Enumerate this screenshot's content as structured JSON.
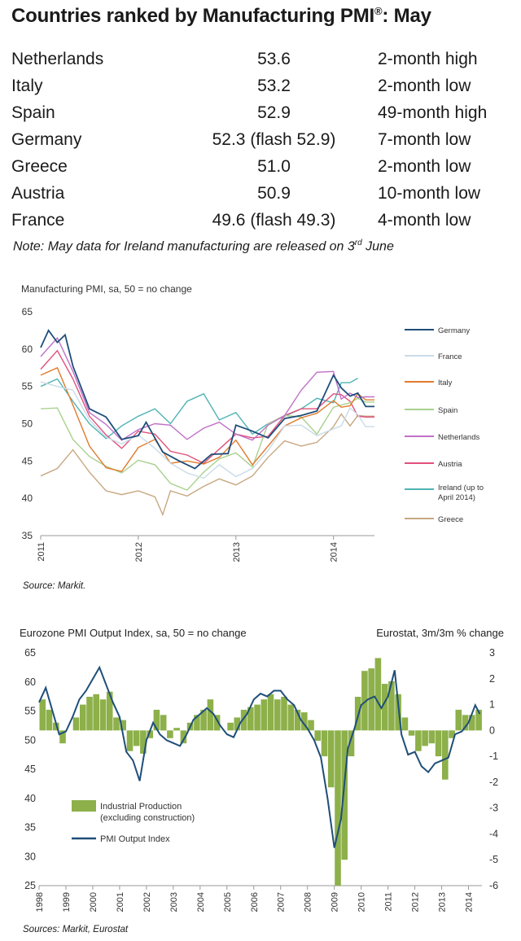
{
  "title": "Countries ranked by Manufacturing PMI",
  "title_mark": "®",
  "title_suffix": ": May",
  "rankings": [
    {
      "country": "Netherlands",
      "value": "53.6",
      "note": "2-month high"
    },
    {
      "country": "Italy",
      "value": "53.2",
      "note": "2-month low"
    },
    {
      "country": "Spain",
      "value": "52.9",
      "note": "49-month high"
    },
    {
      "country": "Germany",
      "value": "52.3 (flash 52.9)",
      "note": "7-month low"
    },
    {
      "country": "Greece",
      "value": "51.0",
      "note": "2-month low"
    },
    {
      "country": "Austria",
      "value": "50.9",
      "note": "10-month low"
    },
    {
      "country": "France",
      "value": "49.6 (flash 49.3)",
      "note": "4-month low"
    }
  ],
  "note_pre": "Note: May data for Ireland manufacturing are released on 3",
  "note_sup": "rd",
  "note_post": " June",
  "source1": "Source: Markit.",
  "source2": "Sources: Markit, Eurostat",
  "chart_data": [
    {
      "type": "line",
      "title": "Manufacturing PMI, sa, 50 = no change",
      "xlabel": "",
      "ylabel": "",
      "ylim": [
        35,
        65
      ],
      "yticks": [
        35,
        40,
        45,
        50,
        55,
        60,
        65
      ],
      "xlim": [
        2011.0,
        2014.42
      ],
      "xticks": [
        "2011",
        "2012",
        "2013",
        "2014"
      ],
      "legend_position": "right",
      "series": [
        {
          "name": "Germany",
          "color": "#1f4e79",
          "x": [
            2011.0,
            2011.08,
            2011.17,
            2011.25,
            2011.33,
            2011.5,
            2011.67,
            2011.83,
            2012.0,
            2012.08,
            2012.25,
            2012.42,
            2012.58,
            2012.75,
            2012.92,
            2013.0,
            2013.17,
            2013.33,
            2013.5,
            2013.67,
            2013.83,
            2014.0,
            2014.08,
            2014.17,
            2014.25,
            2014.33,
            2014.42
          ],
          "values": [
            60.2,
            62.5,
            60.9,
            61.9,
            57.7,
            52.0,
            50.9,
            47.9,
            48.4,
            50.2,
            46.2,
            45.0,
            44.0,
            45.9,
            46.0,
            49.8,
            49.0,
            48.1,
            50.7,
            51.1,
            51.7,
            56.5,
            54.8,
            53.7,
            54.1,
            52.3,
            52.3
          ]
        },
        {
          "name": "France",
          "color": "#c9dbe8",
          "x": [
            2011.0,
            2011.17,
            2011.33,
            2011.5,
            2011.67,
            2011.83,
            2012.0,
            2012.17,
            2012.33,
            2012.5,
            2012.67,
            2012.83,
            2013.0,
            2013.17,
            2013.33,
            2013.5,
            2013.67,
            2013.83,
            2014.0,
            2014.08,
            2014.17,
            2014.25,
            2014.33,
            2014.42
          ],
          "values": [
            55.6,
            55.0,
            54.5,
            50.5,
            48.2,
            47.3,
            48.5,
            46.7,
            44.7,
            43.4,
            42.7,
            44.5,
            42.9,
            44.0,
            46.4,
            49.7,
            49.8,
            48.4,
            49.3,
            49.7,
            52.1,
            51.2,
            49.6,
            49.6
          ]
        },
        {
          "name": "Italy",
          "color": "#e07b2d",
          "x": [
            2011.0,
            2011.17,
            2011.33,
            2011.5,
            2011.67,
            2011.83,
            2012.0,
            2012.17,
            2012.33,
            2012.5,
            2012.67,
            2012.83,
            2013.0,
            2013.17,
            2013.33,
            2013.5,
            2013.67,
            2013.83,
            2014.0,
            2014.08,
            2014.17,
            2014.25,
            2014.33,
            2014.42
          ],
          "values": [
            56.5,
            57.5,
            52.5,
            47.0,
            44.1,
            43.6,
            46.8,
            47.9,
            44.7,
            45.0,
            44.6,
            45.5,
            47.8,
            44.5,
            47.0,
            49.7,
            50.8,
            51.4,
            53.1,
            52.2,
            52.4,
            54.0,
            53.2,
            53.2
          ]
        },
        {
          "name": "Spain",
          "color": "#a9d18e",
          "x": [
            2011.0,
            2011.17,
            2011.33,
            2011.5,
            2011.67,
            2011.83,
            2012.0,
            2012.17,
            2012.33,
            2012.5,
            2012.67,
            2012.83,
            2013.0,
            2013.17,
            2013.33,
            2013.5,
            2013.67,
            2013.83,
            2014.0,
            2014.08,
            2014.17,
            2014.25,
            2014.33,
            2014.42
          ],
          "values": [
            52.0,
            52.1,
            47.9,
            45.6,
            44.3,
            43.4,
            45.1,
            44.5,
            42.0,
            41.1,
            43.5,
            45.3,
            46.1,
            44.2,
            50.0,
            51.1,
            50.9,
            48.6,
            52.2,
            52.5,
            52.8,
            53.4,
            52.9,
            52.9
          ]
        },
        {
          "name": "Netherlands",
          "color": "#c070c8",
          "x": [
            2011.0,
            2011.17,
            2011.33,
            2011.5,
            2011.67,
            2011.83,
            2012.0,
            2012.17,
            2012.33,
            2012.5,
            2012.67,
            2012.83,
            2013.0,
            2013.17,
            2013.33,
            2013.5,
            2013.67,
            2013.83,
            2014.0,
            2014.08,
            2014.17,
            2014.25,
            2014.33,
            2014.42
          ],
          "values": [
            59.0,
            61.5,
            57.0,
            51.5,
            49.9,
            47.8,
            49.2,
            50.0,
            49.8,
            47.9,
            49.4,
            50.2,
            48.6,
            47.8,
            49.8,
            51.1,
            54.5,
            56.9,
            57.0,
            53.3,
            54.1,
            53.5,
            53.6,
            53.6
          ]
        },
        {
          "name": "Austria",
          "color": "#e0507a",
          "x": [
            2011.0,
            2011.17,
            2011.33,
            2011.5,
            2011.67,
            2011.83,
            2012.0,
            2012.17,
            2012.33,
            2012.5,
            2012.67,
            2012.83,
            2013.0,
            2013.17,
            2013.33,
            2013.5,
            2013.67,
            2013.83,
            2014.0,
            2014.08,
            2014.17,
            2014.25,
            2014.33,
            2014.42
          ],
          "values": [
            57.3,
            59.8,
            56.0,
            51.0,
            48.5,
            46.7,
            49.0,
            48.6,
            46.3,
            45.8,
            44.7,
            46.6,
            48.6,
            48.1,
            48.3,
            51.1,
            52.0,
            52.0,
            54.0,
            53.9,
            53.0,
            51.0,
            50.9,
            50.9
          ]
        },
        {
          "name": "Ireland (up to April 2014)",
          "color": "#4fb3b3",
          "x": [
            2011.0,
            2011.17,
            2011.33,
            2011.5,
            2011.67,
            2011.83,
            2012.0,
            2012.17,
            2012.33,
            2012.5,
            2012.67,
            2012.83,
            2013.0,
            2013.17,
            2013.33,
            2013.5,
            2013.67,
            2013.83,
            2014.0,
            2014.08,
            2014.17,
            2014.25
          ],
          "values": [
            55.0,
            56.0,
            53.0,
            50.0,
            48.0,
            49.7,
            51.0,
            52.0,
            50.0,
            53.0,
            54.0,
            50.5,
            51.5,
            48.6,
            50.0,
            51.0,
            52.0,
            53.4,
            52.8,
            55.5,
            55.5,
            56.1
          ]
        },
        {
          "name": "Greece",
          "color": "#c7a882",
          "x": [
            2011.0,
            2011.17,
            2011.33,
            2011.5,
            2011.67,
            2011.83,
            2012.0,
            2012.17,
            2012.25,
            2012.33,
            2012.5,
            2012.67,
            2012.83,
            2013.0,
            2013.17,
            2013.33,
            2013.5,
            2013.67,
            2013.83,
            2014.0,
            2014.08,
            2014.17,
            2014.25,
            2014.33,
            2014.42
          ],
          "values": [
            43.0,
            44.0,
            46.5,
            43.5,
            41.0,
            40.5,
            41.0,
            40.2,
            37.8,
            41.0,
            40.3,
            41.6,
            42.6,
            41.8,
            43.0,
            45.5,
            47.7,
            47.0,
            47.5,
            49.6,
            51.3,
            49.7,
            51.1,
            51.0,
            51.0
          ]
        }
      ]
    },
    {
      "type": "bar",
      "title": "Eurozone PMI Output Index, sa, 50 = no change",
      "right_axis_title": "Eurostat, 3m/3m % change",
      "ylim": [
        25,
        65
      ],
      "yticks": [
        25,
        30,
        35,
        40,
        45,
        50,
        55,
        60,
        65
      ],
      "y2lim": [
        -6,
        3
      ],
      "y2ticks": [
        -6,
        -5,
        -4,
        -3,
        -2,
        -1,
        0,
        1,
        2,
        3
      ],
      "xlim": [
        1998.0,
        2014.5
      ],
      "xticks": [
        "1998",
        "1999",
        "2000",
        "2001",
        "2002",
        "2003",
        "2004",
        "2005",
        "2006",
        "2007",
        "2008",
        "2009",
        "2010",
        "2011",
        "2012",
        "2013",
        "2014"
      ],
      "legend_position": "bottom-left",
      "series": [
        {
          "name": "Industrial Production (excluding construction)",
          "axis": "right",
          "color": "#8db04a",
          "x": [
            1998.0,
            1998.25,
            1998.5,
            1998.75,
            1999.0,
            1999.25,
            1999.5,
            1999.75,
            2000.0,
            2000.25,
            2000.5,
            2000.75,
            2001.0,
            2001.25,
            2001.5,
            2001.75,
            2002.0,
            2002.25,
            2002.5,
            2002.75,
            2003.0,
            2003.25,
            2003.5,
            2003.75,
            2004.0,
            2004.25,
            2004.5,
            2004.75,
            2005.0,
            2005.25,
            2005.5,
            2005.75,
            2006.0,
            2006.25,
            2006.5,
            2006.75,
            2007.0,
            2007.25,
            2007.5,
            2007.75,
            2008.0,
            2008.25,
            2008.5,
            2008.75,
            2009.0,
            2009.25,
            2009.5,
            2009.75,
            2010.0,
            2010.25,
            2010.5,
            2010.75,
            2011.0,
            2011.25,
            2011.5,
            2011.75,
            2012.0,
            2012.25,
            2012.5,
            2012.75,
            2013.0,
            2013.25,
            2013.5,
            2013.75,
            2014.0,
            2014.25
          ],
          "values": [
            1.2,
            0.8,
            0.3,
            -0.5,
            0.0,
            0.5,
            1.0,
            1.3,
            1.4,
            1.2,
            1.5,
            0.5,
            0.4,
            -0.8,
            -0.6,
            -0.9,
            -0.3,
            0.8,
            0.6,
            -0.3,
            0.1,
            -0.5,
            0.3,
            0.6,
            0.8,
            1.2,
            0.6,
            0.0,
            0.3,
            0.5,
            0.8,
            0.9,
            1.0,
            1.2,
            1.4,
            1.2,
            1.3,
            1.0,
            0.8,
            0.7,
            0.4,
            -0.4,
            -1.0,
            -2.2,
            -6.0,
            -5.0,
            -1.0,
            1.3,
            2.3,
            2.4,
            2.8,
            1.8,
            1.9,
            1.4,
            0.5,
            -0.2,
            -0.8,
            -0.6,
            -0.5,
            -1.0,
            -1.9,
            -0.3,
            0.8,
            0.6,
            0.6,
            0.8
          ]
        },
        {
          "name": "PMI Output Index",
          "axis": "left",
          "color": "#1f4e79",
          "x": [
            1998.0,
            1998.25,
            1998.5,
            1998.75,
            1999.0,
            1999.25,
            1999.5,
            1999.75,
            2000.0,
            2000.25,
            2000.5,
            2000.75,
            2001.0,
            2001.25,
            2001.5,
            2001.75,
            2002.0,
            2002.25,
            2002.5,
            2002.75,
            2003.0,
            2003.25,
            2003.5,
            2003.75,
            2004.0,
            2004.25,
            2004.5,
            2004.75,
            2005.0,
            2005.25,
            2005.5,
            2005.75,
            2006.0,
            2006.25,
            2006.5,
            2006.75,
            2007.0,
            2007.25,
            2007.5,
            2007.75,
            2008.0,
            2008.25,
            2008.5,
            2008.75,
            2009.0,
            2009.25,
            2009.5,
            2009.75,
            2010.0,
            2010.25,
            2010.5,
            2010.75,
            2011.0,
            2011.25,
            2011.5,
            2011.75,
            2012.0,
            2012.25,
            2012.5,
            2012.75,
            2013.0,
            2013.25,
            2013.5,
            2013.75,
            2014.0,
            2014.25,
            2014.42
          ],
          "values": [
            56.5,
            59.0,
            55.0,
            51.0,
            51.5,
            54.0,
            57.0,
            58.5,
            60.5,
            62.5,
            59.5,
            56.5,
            54.0,
            48.0,
            46.5,
            43.0,
            50.0,
            53.0,
            51.0,
            50.0,
            49.5,
            49.0,
            51.0,
            53.5,
            54.5,
            55.5,
            54.5,
            52.5,
            51.0,
            50.5,
            53.0,
            54.5,
            57.0,
            58.0,
            57.5,
            58.5,
            58.5,
            57.0,
            56.0,
            53.5,
            52.0,
            50.0,
            47.0,
            40.0,
            31.5,
            36.5,
            48.5,
            52.0,
            56.0,
            57.0,
            57.5,
            55.5,
            57.5,
            62.0,
            51.0,
            47.5,
            48.0,
            45.5,
            44.5,
            46.0,
            46.5,
            47.0,
            51.0,
            51.5,
            53.0,
            56.0,
            54.5
          ]
        }
      ]
    }
  ]
}
